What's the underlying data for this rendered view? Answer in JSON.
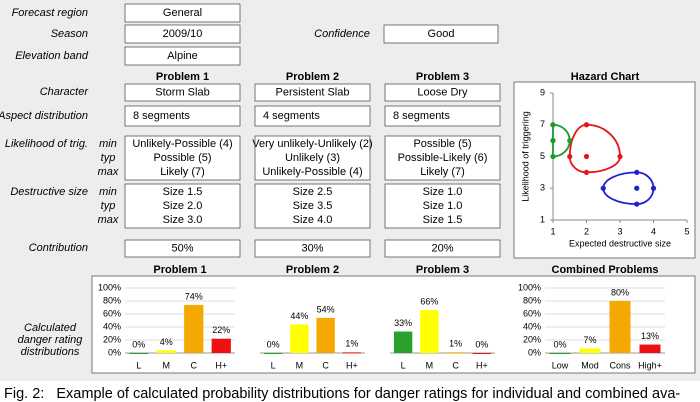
{
  "form": {
    "forecast_region_label": "Forecast region",
    "forecast_region": "General",
    "season_label": "Season",
    "season": "2009/10",
    "confidence_label": "Confidence",
    "confidence": "Good",
    "elevation_band_label": "Elevation band",
    "elevation_band": "Alpine"
  },
  "row_labels": {
    "character": "Character",
    "aspect": "Aspect distribution",
    "likelihood": "Likelihood of trig.",
    "size": "Destructive size",
    "contribution": "Contribution",
    "distributions": [
      "Calculated",
      "danger rating",
      "distributions"
    ]
  },
  "sub_labels": [
    "min",
    "typ",
    "max"
  ],
  "problems": [
    {
      "name": "Problem 1",
      "color": "#e8141c",
      "character": "Storm Slab",
      "aspect": "8 segments",
      "likelihood": [
        "Unlikely-Possible (4)",
        "Possible (5)",
        "Likely (7)"
      ],
      "size": [
        "Size 1.5",
        "Size 2.0",
        "Size 3.0"
      ],
      "contribution": "50%"
    },
    {
      "name": "Problem 2",
      "color": "#2020d0",
      "character": "Persistent Slab",
      "aspect": "4 segments",
      "likelihood": [
        "Very unlikely-Unlikely (2)",
        "Unlikely (3)",
        "Unlikely-Possible (4)"
      ],
      "size": [
        "Size 2.5",
        "Size 3.5",
        "Size 4.0"
      ],
      "contribution": "30%"
    },
    {
      "name": "Problem 3",
      "color": "#1a9a30",
      "character": "Loose Dry",
      "aspect": "8 segments",
      "likelihood": [
        "Possible (5)",
        "Possible-Likely (6)",
        "Likely (7)"
      ],
      "size": [
        "Size 1.0",
        "Size 1.0",
        "Size 1.5"
      ],
      "contribution": "20%"
    }
  ],
  "chart_data": [
    {
      "type": "scatter",
      "title": "Hazard Chart",
      "x_label": "Expected destructive size",
      "y_label": "Likelihood of triggering",
      "xlim": [
        1,
        5
      ],
      "xticks": [
        1,
        2,
        3,
        4,
        5
      ],
      "ylim": [
        1,
        9
      ],
      "yticks": [
        1,
        3,
        5,
        7,
        9
      ],
      "series": [
        {
          "color": "#e8141c",
          "x": [
            1.5,
            2,
            3
          ],
          "y": [
            4,
            5,
            7
          ]
        },
        {
          "color": "#2020d0",
          "x": [
            2.5,
            3.5,
            4
          ],
          "y": [
            2,
            3,
            4
          ]
        },
        {
          "color": "#1a9a30",
          "x": [
            1,
            1,
            1.5
          ],
          "y": [
            5,
            6,
            7
          ]
        }
      ]
    },
    {
      "type": "bar",
      "title": "Problem 1",
      "title_color": "#e8141c",
      "categories": [
        "L",
        "M",
        "C",
        "H+"
      ],
      "values": [
        0,
        4,
        74,
        22
      ],
      "value_labels": [
        "0%",
        "4%",
        "74%",
        "22%"
      ],
      "colors": [
        "#2ca02c",
        "#ffff00",
        "#f5a800",
        "#ee1111"
      ],
      "ylim": [
        0,
        100
      ],
      "yticks": [
        {
          "value": 0,
          "label": "0%"
        },
        {
          "value": 20,
          "label": "20%"
        },
        {
          "value": 40,
          "label": "40%"
        },
        {
          "value": 60,
          "label": "60%"
        },
        {
          "value": 80,
          "label": "80%"
        },
        {
          "value": 100,
          "label": "100%"
        }
      ]
    },
    {
      "type": "bar",
      "title": "Problem 2",
      "title_color": "#2020d0",
      "categories": [
        "L",
        "M",
        "C",
        "H+"
      ],
      "values": [
        0,
        44,
        54,
        1
      ],
      "value_labels": [
        "0%",
        "44%",
        "54%",
        "1%"
      ],
      "colors": [
        "#2ca02c",
        "#ffff00",
        "#f5a800",
        "#ee1111"
      ],
      "ylim": [
        0,
        100
      ]
    },
    {
      "type": "bar",
      "title": "Problem 3",
      "title_color": "#1a9a30",
      "categories": [
        "L",
        "M",
        "C",
        "H+"
      ],
      "values": [
        33,
        66,
        1,
        0
      ],
      "value_labels": [
        "33%",
        "66%",
        "1%",
        "0%"
      ],
      "colors": [
        "#2ca02c",
        "#ffff00",
        "#f5a800",
        "#ee1111"
      ],
      "ylim": [
        0,
        100
      ]
    },
    {
      "type": "bar",
      "title": "Combined Problems",
      "title_color": "#000000",
      "categories": [
        "Low",
        "Mod",
        "Cons",
        "High+"
      ],
      "values": [
        0,
        7,
        80,
        13
      ],
      "value_labels": [
        "0%",
        "7%",
        "80%",
        "13%"
      ],
      "colors": [
        "#2ca02c",
        "#ffff00",
        "#f5a800",
        "#ee1111"
      ],
      "ylim": [
        0,
        100
      ],
      "yticks": [
        {
          "value": 0,
          "label": "0%"
        },
        {
          "value": 20,
          "label": "20%"
        },
        {
          "value": 40,
          "label": "40%"
        },
        {
          "value": 60,
          "label": "60%"
        },
        {
          "value": 80,
          "label": "80%"
        },
        {
          "value": 100,
          "label": "100%"
        }
      ]
    }
  ],
  "caption": "Fig. 2:   Example of calculated probability distributions for danger ratings for individual and combined ava-"
}
